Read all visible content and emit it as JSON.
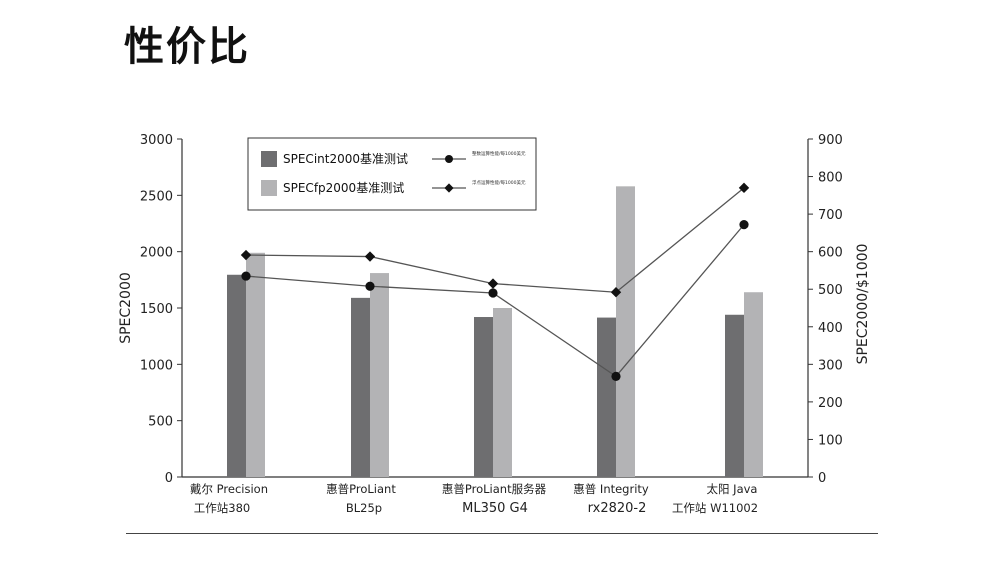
{
  "page": {
    "title": "性价比"
  },
  "chart_data": {
    "type": "bar",
    "categories": [
      [
        "戴尔 Precision",
        "工作站380"
      ],
      [
        "惠普ProLiant",
        "BL25p"
      ],
      [
        "惠普ProLiant服务器",
        "ML350 G4"
      ],
      [
        "惠普 Integrity",
        "rx2820-2"
      ],
      [
        "太阳 Java",
        "工作站 W11002"
      ]
    ],
    "series": [
      {
        "name": "SPECint2000基准测试",
        "kind": "bar",
        "axis": "left",
        "color": "#6e6e70",
        "values": [
          1795,
          1590,
          1420,
          1415,
          1440
        ]
      },
      {
        "name": "SPECfp2000基准测试",
        "kind": "bar",
        "axis": "left",
        "color": "#b3b3b5",
        "values": [
          1990,
          1810,
          1500,
          2580,
          1640
        ]
      },
      {
        "name": "整数运算性能/每1000美元",
        "kind": "line",
        "axis": "right",
        "marker": "circle",
        "color": "#555555",
        "values": [
          535,
          508,
          490,
          268,
          672
        ]
      },
      {
        "name": "浮点运算性能/每1000美元",
        "kind": "line",
        "axis": "right",
        "marker": "diamond",
        "color": "#555555",
        "values": [
          591,
          587,
          515,
          492,
          770
        ]
      }
    ],
    "ylabel": "SPEC2000",
    "ylim": [
      0,
      3000
    ],
    "yticks": [
      0,
      500,
      1000,
      1500,
      2000,
      2500,
      3000
    ],
    "y2label": "SPEC2000/$1000",
    "y2lim": [
      0,
      900
    ],
    "y2ticks": [
      0,
      100,
      200,
      300,
      400,
      500,
      600,
      700,
      800,
      900
    ],
    "grid": false,
    "legend": "top-left"
  }
}
